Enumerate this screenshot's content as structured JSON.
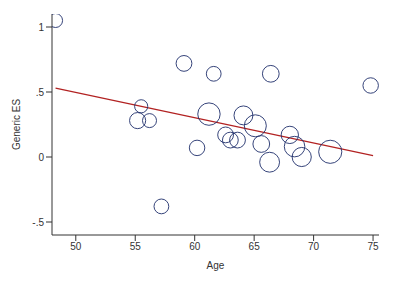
{
  "chart_data": {
    "type": "scatter",
    "x_label": "Age",
    "y_label": "Generic ES",
    "marker": "hollow_circle",
    "color": "#1f2f6b",
    "x": [
      48.3,
      55.2,
      55.5,
      56.2,
      57.2,
      59.1,
      60.2,
      61.2,
      61.6,
      62.6,
      63.0,
      63.6,
      64.1,
      65.1,
      65.6,
      66.3,
      66.4,
      68.0,
      68.4,
      69.0,
      71.4,
      74.8
    ],
    "values": [
      1.05,
      0.28,
      0.39,
      0.28,
      -0.38,
      0.72,
      0.07,
      0.33,
      0.64,
      0.17,
      0.13,
      0.13,
      0.32,
      0.24,
      0.1,
      -0.04,
      0.64,
      0.17,
      0.08,
      0.0,
      0.04,
      0.55
    ],
    "bubble_size": [
      1,
      1.6,
      0.8,
      1,
      1.2,
      1.5,
      1.4,
      4.2,
      1.2,
      1.5,
      1.5,
      1.5,
      2.6,
      4,
      1.8,
      3,
      1.8,
      2,
      3.3,
      2.7,
      4.6,
      1.4
    ],
    "fit_line": {
      "x": [
        48.3,
        75
      ],
      "values": [
        0.53,
        0.01
      ],
      "color": "#b22222"
    },
    "xlim": [
      48,
      75.5
    ],
    "xticks": [
      50,
      55,
      60,
      65,
      70,
      75
    ],
    "ylim": [
      -0.6,
      1.1
    ],
    "yticks": [
      {
        "value": -0.5,
        "label": "-.5"
      },
      0,
      {
        "value": 0.5,
        "label": ".5"
      },
      1
    ],
    "grid": false
  }
}
